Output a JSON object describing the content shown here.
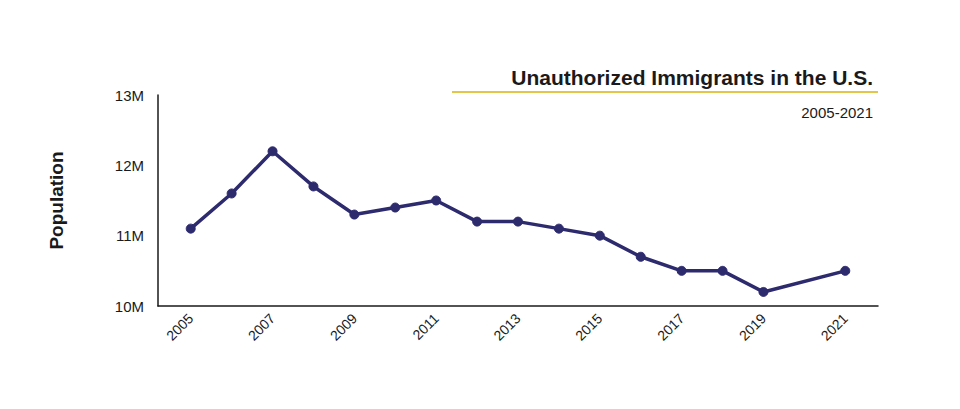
{
  "chart_data": {
    "type": "line",
    "title": "Unauthorized Immigrants in the U.S.",
    "subtitle": "2005-2021",
    "y_label": "Population",
    "x": [
      2005,
      2006,
      2007,
      2008,
      2009,
      2010,
      2011,
      2012,
      2013,
      2014,
      2015,
      2016,
      2017,
      2018,
      2019,
      2021
    ],
    "values": [
      11100000,
      11600000,
      12200000,
      11700000,
      11300000,
      11400000,
      11500000,
      11200000,
      11200000,
      11100000,
      11000000,
      10700000,
      10500000,
      10500000,
      10200000,
      10500000
    ],
    "color": "#2d2a6e",
    "marker": "circle",
    "xlim": [
      2004.2,
      2021.8
    ],
    "xticks": [
      2005,
      2007,
      2009,
      2011,
      2013,
      2015,
      2017,
      2019,
      2021
    ],
    "ylim": [
      10000000,
      13000000
    ],
    "yticks": [
      {
        "value": 10000000,
        "label": "10M"
      },
      {
        "value": 11000000,
        "label": "11M"
      },
      {
        "value": 12000000,
        "label": "12M"
      },
      {
        "value": 13000000,
        "label": "13M"
      }
    ],
    "grid": false
  }
}
